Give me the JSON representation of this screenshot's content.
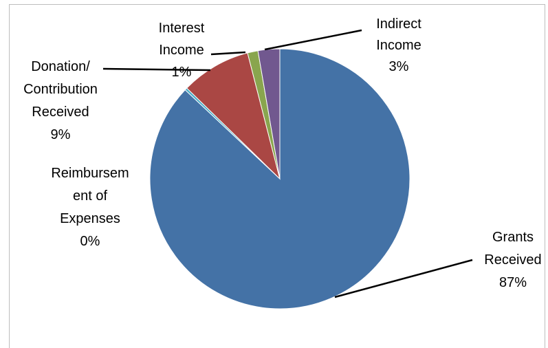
{
  "chart_data": {
    "type": "pie",
    "title": "",
    "legend": "none",
    "slices": [
      {
        "name": "Grants Received",
        "value": 87,
        "label_lines": [
          "Grants",
          "Received",
          "87%"
        ],
        "color": "#4472a6"
      },
      {
        "name": "Reimbursement of Expenses",
        "value": 0.3,
        "label_lines": [
          "Reimbursem",
          "ent of",
          "Expenses",
          "0%"
        ],
        "color": "#4aacc6"
      },
      {
        "name": "Donation/ Contribution Received",
        "value": 8.7,
        "label_lines": [
          "Donation/",
          "Contribution",
          "Received",
          "9%"
        ],
        "color": "#aa4744"
      },
      {
        "name": "Interest Income",
        "value": 1.3,
        "label_lines": [
          "Interest",
          "Income",
          "1%"
        ],
        "color": "#89a54e"
      },
      {
        "name": "Indirect Income",
        "value": 2.7,
        "label_lines": [
          "Indirect",
          "Income",
          "3%"
        ],
        "color": "#71588f"
      }
    ]
  }
}
